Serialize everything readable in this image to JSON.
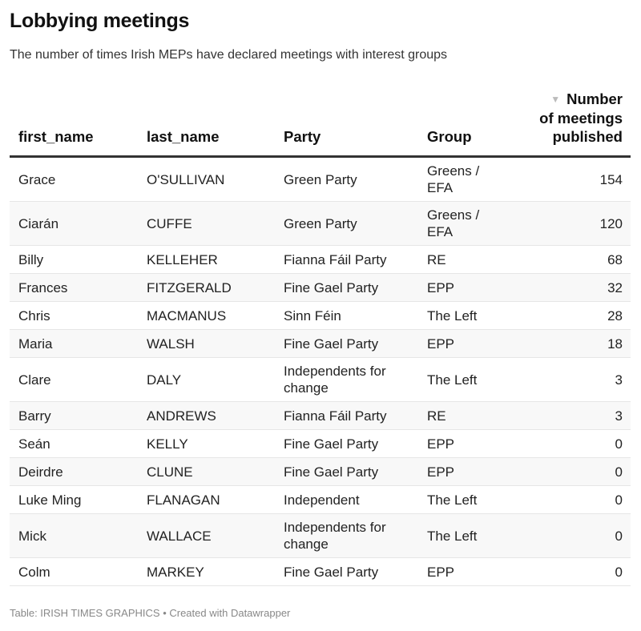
{
  "title": "Lobbying meetings",
  "subtitle": "The number of times Irish MEPs have declared meetings with interest groups",
  "columns": {
    "first_name": "first_name",
    "last_name": "last_name",
    "party": "Party",
    "group": "Group",
    "meetings_line1": "Number",
    "meetings_line2": "of meetings",
    "meetings_line3": "published",
    "sort_icon": "triangle-down-icon"
  },
  "rows": [
    {
      "first_name": "Grace",
      "last_name": "O'SULLIVAN",
      "party": "Green Party",
      "group": "Greens / EFA",
      "meetings": "154"
    },
    {
      "first_name": "Ciarán",
      "last_name": "CUFFE",
      "party": "Green Party",
      "group": "Greens / EFA",
      "meetings": "120"
    },
    {
      "first_name": "Billy",
      "last_name": "KELLEHER",
      "party": "Fianna Fáil Party",
      "group": "RE",
      "meetings": "68"
    },
    {
      "first_name": "Frances",
      "last_name": "FITZGERALD",
      "party": "Fine Gael Party",
      "group": "EPP",
      "meetings": "32"
    },
    {
      "first_name": "Chris",
      "last_name": "MACMANUS",
      "party": "Sinn Féin",
      "group": "The Left",
      "meetings": "28"
    },
    {
      "first_name": "Maria",
      "last_name": "WALSH",
      "party": "Fine Gael Party",
      "group": "EPP",
      "meetings": "18"
    },
    {
      "first_name": "Clare",
      "last_name": "DALY",
      "party": "Independents for change",
      "group": "The Left",
      "meetings": "3"
    },
    {
      "first_name": "Barry",
      "last_name": "ANDREWS",
      "party": "Fianna Fáil Party",
      "group": "RE",
      "meetings": "3"
    },
    {
      "first_name": "Seán",
      "last_name": "KELLY",
      "party": "Fine Gael Party",
      "group": "EPP",
      "meetings": "0"
    },
    {
      "first_name": "Deirdre",
      "last_name": "CLUNE",
      "party": "Fine Gael Party",
      "group": "EPP",
      "meetings": "0"
    },
    {
      "first_name": "Luke Ming",
      "last_name": "FLANAGAN",
      "party": "Independent",
      "group": "The Left",
      "meetings": "0"
    },
    {
      "first_name": "Mick",
      "last_name": "WALLACE",
      "party": "Independents for change",
      "group": "The Left",
      "meetings": "0"
    },
    {
      "first_name": "Colm",
      "last_name": "MARKEY",
      "party": "Fine Gael Party",
      "group": "EPP",
      "meetings": "0"
    }
  ],
  "footer": "Table: IRISH TIMES GRAPHICS • Created with Datawrapper"
}
